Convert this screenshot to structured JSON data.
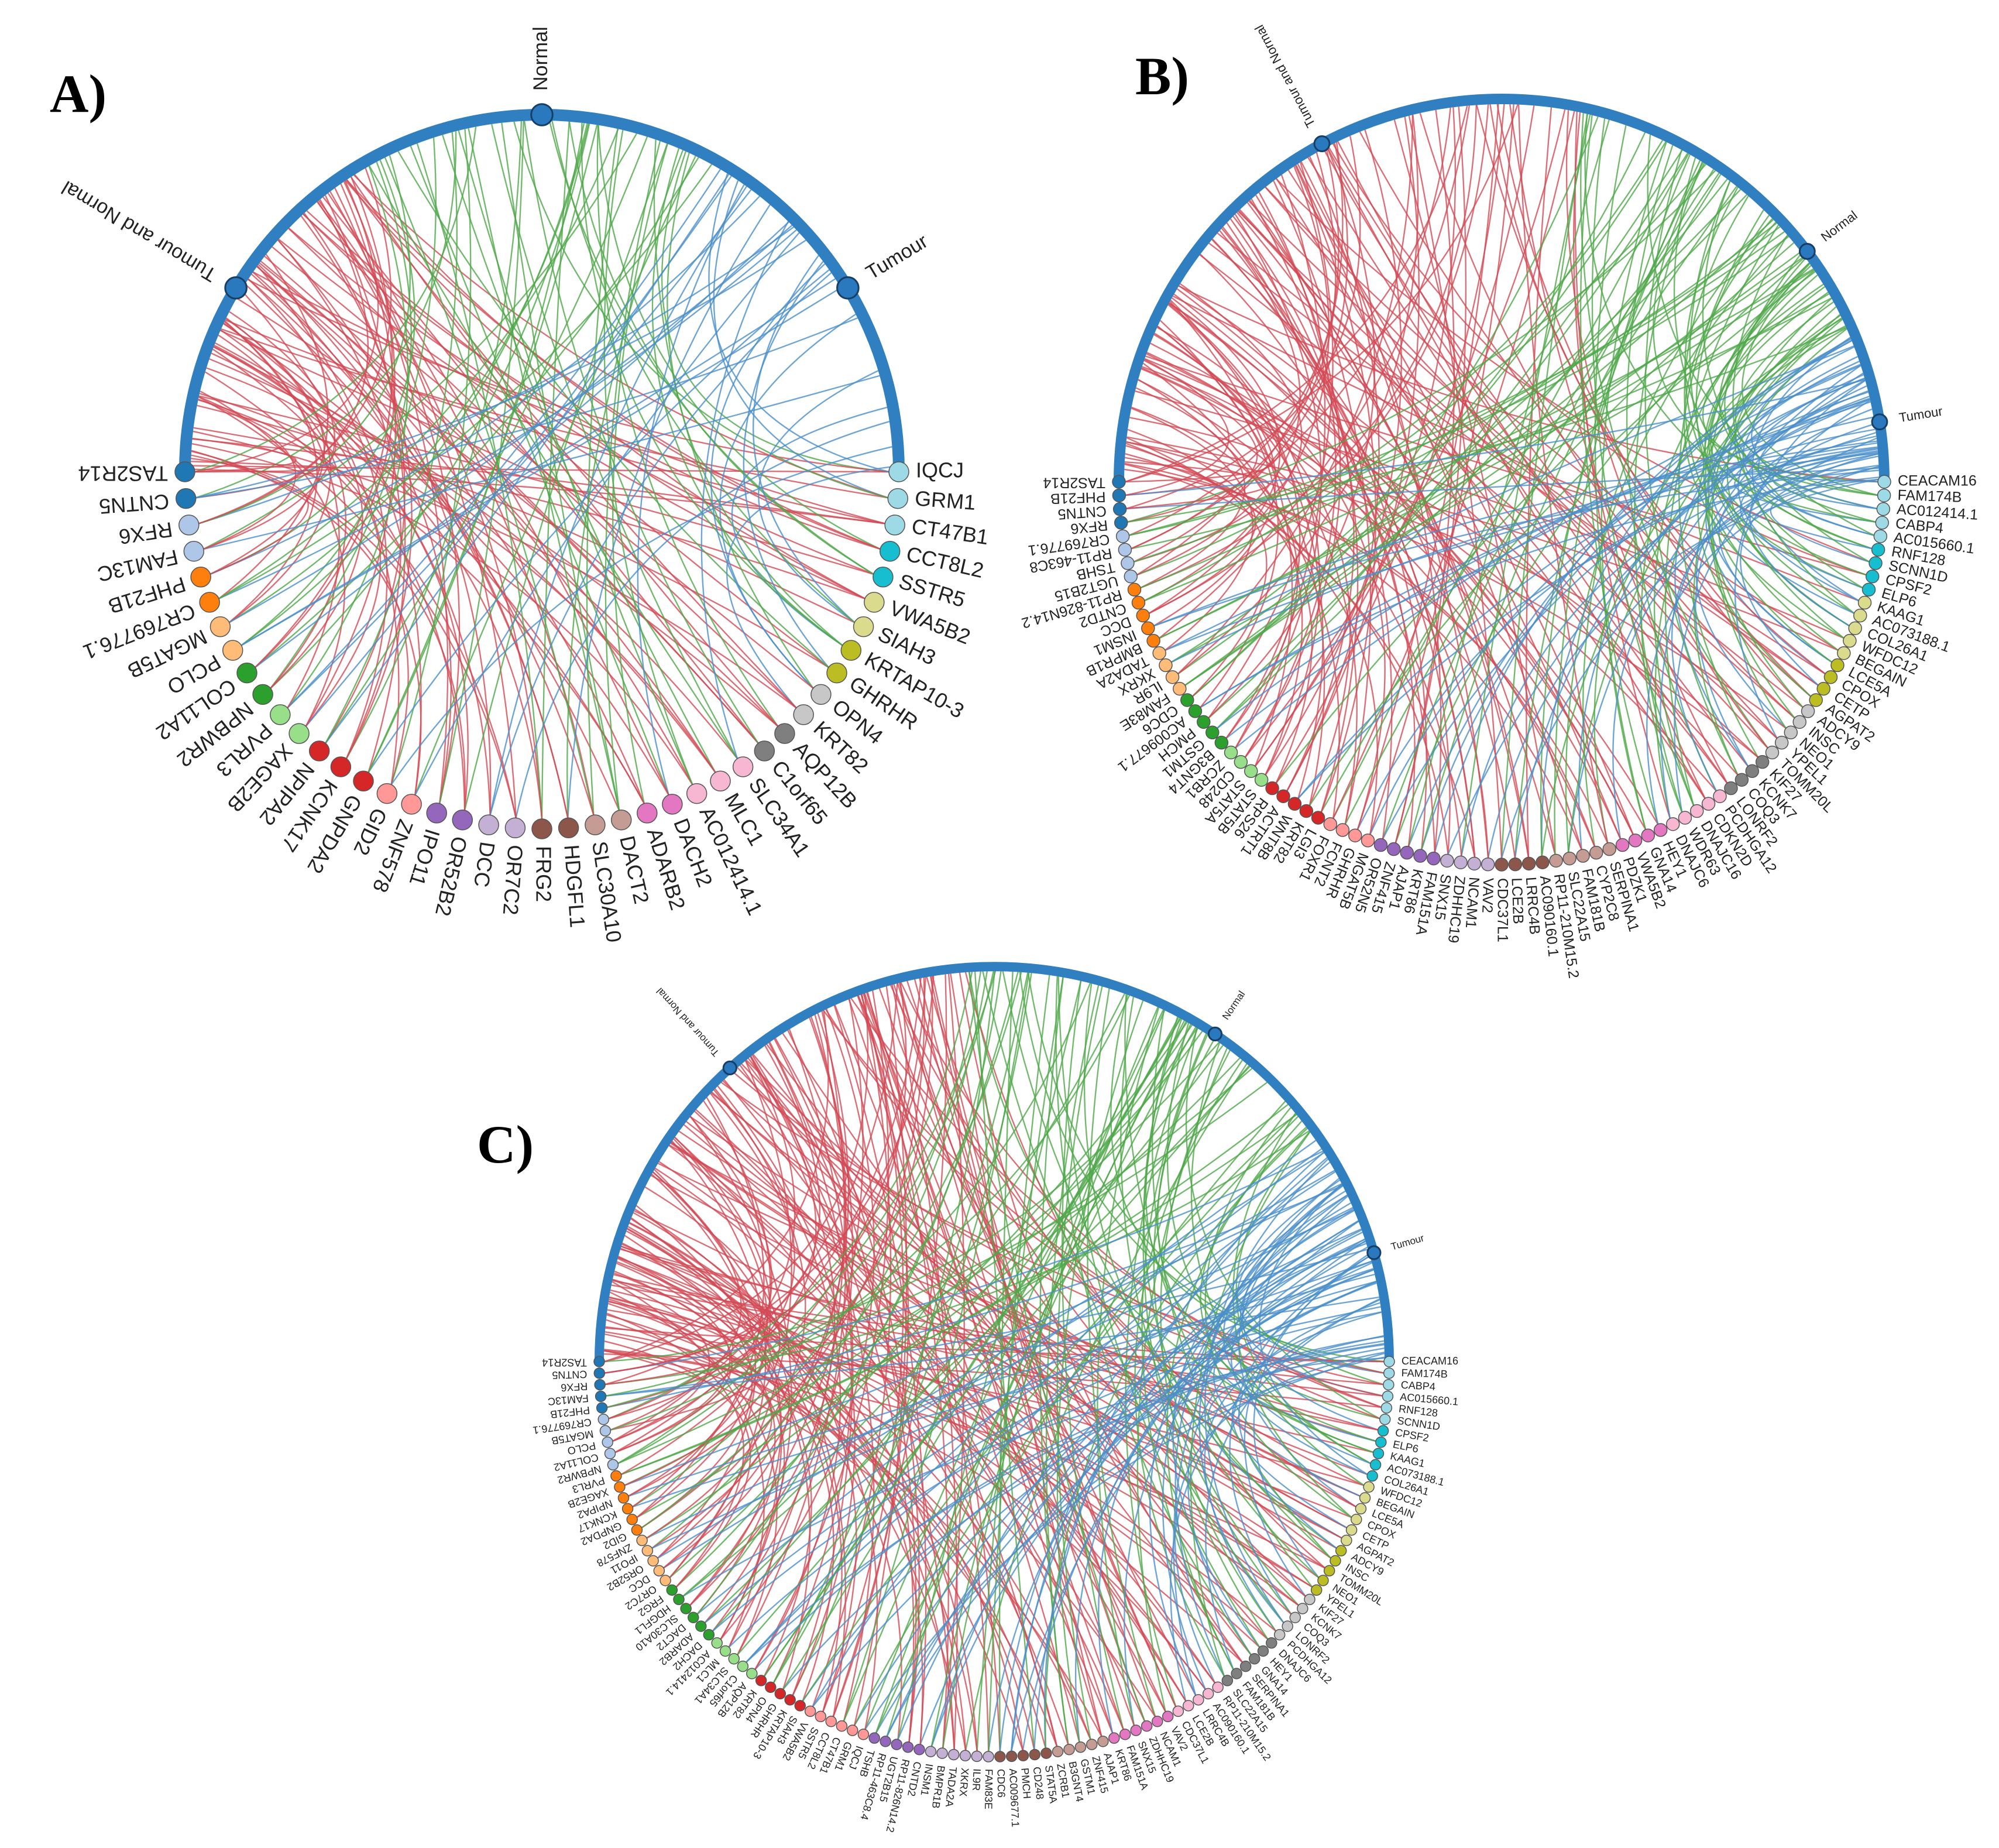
{
  "panels": [
    {
      "label": "A)",
      "groups": [
        "Tumour and Normal",
        "Normal",
        "Tumour"
      ],
      "genes": [
        "IQCJ",
        "GRM1",
        "CT47B1",
        "CCT8L2",
        "SSTR5",
        "VWA5B2",
        "SIAH3",
        "KRTAP10-3",
        "GHRHR",
        "OPN4",
        "KRT82",
        "AQP12B",
        "C1orf65",
        "SLC34A1",
        "MLC1",
        "AC012414.1",
        "DACH2",
        "ADARB2",
        "DACT2",
        "SLC30A10",
        "HDGFL1",
        "FRG2",
        "OR7C2",
        "DCC",
        "OR52B2",
        "IPO11",
        "ZNF578",
        "GID2",
        "GNPDA2",
        "KCNK17",
        "NPIPA2",
        "XAGE2B",
        "PVRL3",
        "NPBWR2",
        "COL11A2",
        "PCLO",
        "MGAT5B",
        "CR769776.1",
        "PHF21B",
        "FAM13C",
        "RFX6",
        "CNTN5",
        "TAS2R14"
      ]
    },
    {
      "label": "B)",
      "groups": [
        "Tumour and Normal",
        "Normal",
        "Tumour"
      ],
      "genes": [
        "CEACAM16",
        "FAM174B",
        "AC012414.1",
        "CABP4",
        "AC015660.1",
        "RNF128",
        "SCNN1D",
        "CPSF2",
        "ELP6",
        "KAAG1",
        "AC073188.1",
        "COL26A1",
        "WFDC12",
        "BEGAIN",
        "LCE5A",
        "CPOX",
        "CETP",
        "AGPAT2",
        "ADCY9",
        "INSC",
        "NEO1",
        "YPEL1",
        "TOMM20L",
        "KIF27",
        "KCNK7",
        "COQ3",
        "LONRF2",
        "PCDHGA12",
        "CDKN2D",
        "DNAJC16",
        "WDR63",
        "DNAJC6",
        "HEY1",
        "GNA14",
        "VWA5B2",
        "PDZK1",
        "SERPINA1",
        "CYP2C8",
        "FAM181B",
        "SLC22A15",
        "RP11-210M15.2",
        "AC090160.1",
        "LRRC4B",
        "LCE2B",
        "CDC37L1",
        "VAV2",
        "NCAM1",
        "ZDHHC19",
        "SNX15",
        "FAM151A",
        "KRT86",
        "AJAP1",
        "ZNF415",
        "OR52N5",
        "MGAT5B",
        "GHRHR",
        "FCNT2",
        "FOXR1",
        "LGI3",
        "KRT82",
        "WNT8B",
        "ACTRT1",
        "RPS26",
        "STAT5B",
        "STAT5A",
        "CD248",
        "ZCRB1",
        "B3GNT4",
        "GSTM1",
        "PMCH",
        "AC009677.1",
        "CDC6",
        "FAM83E",
        "IL9R",
        "XKRX",
        "TADA2A",
        "BMPR1B",
        "INSM1",
        "DCC",
        "CNTD2",
        "RP11-826N14.2",
        "UGT2B15",
        "TSHB",
        "RP11-463C8",
        "CR769776.1",
        "RFX6",
        "CNTN5",
        "PHF21B",
        "TAS2R14"
      ]
    },
    {
      "label": "C)",
      "groups": [
        "Tumour and Normal",
        "Normal",
        "Tumour"
      ],
      "genes": [
        "CEACAM16",
        "FAM174B",
        "CABP4",
        "AC015660.1",
        "RNF128",
        "SCNN1D",
        "CPSF2",
        "ELP6",
        "KAAG1",
        "AC073188.1",
        "COL26A1",
        "WFDC12",
        "BEGAIN",
        "LCE5A",
        "CPOX",
        "CETP",
        "AGPAT2",
        "ADCY9",
        "INSC",
        "TOMM20L",
        "NEO1",
        "YPEL1",
        "KIF27",
        "KCNK7",
        "COQ3",
        "LONRF2",
        "PCDHGA12",
        "DNAJC6",
        "HEY1",
        "GNA14",
        "SERPINA1",
        "FAM181B",
        "SLC22A15",
        "RP11-210M15.2",
        "AC090160.1",
        "LRRC4B",
        "LCE2B",
        "CDC37L1",
        "VAV2",
        "NCAM1",
        "ZDHHC19",
        "SNX15",
        "FAM151A",
        "KRT86",
        "AJAP1",
        "ZNF415",
        "GSTM1",
        "B3GNT4",
        "ZCRB1",
        "STAT5A",
        "CD248",
        "PMCH",
        "AC009677.1",
        "CDC6",
        "FAM83E",
        "IL9R",
        "XKRX",
        "TADA2A",
        "BMPR1B",
        "INSM1",
        "CNTD2",
        "RP11-826N14.2",
        "UGT2B15",
        "RP11-463C8.4",
        "TSHB",
        "IQCJ",
        "GRM1",
        "CT47B1",
        "CCT8L2",
        "SSTR5",
        "VWA5B2",
        "SIAH3",
        "KRTAP10-3",
        "GHRHR",
        "OPN4",
        "KRT82",
        "AQP12B",
        "C1orf65",
        "SLC34A1",
        "MLC1",
        "AC012414.1",
        "DACH2",
        "ADARB2",
        "DACT2",
        "SLC30A10",
        "HDGFL1",
        "FRG2",
        "OR7C2",
        "DCC",
        "OR52B2",
        "IPO11",
        "ZNF578",
        "GID2",
        "GNPDA2",
        "KCNK17",
        "NPIPA2",
        "XAGE2B",
        "PVRL3",
        "NPBWR2",
        "COL11A2",
        "PCLO",
        "MGAT5B",
        "CR769776.1",
        "PHF21B",
        "FAM13C",
        "RFX6",
        "CNTN5",
        "TAS2R14"
      ]
    }
  ]
}
